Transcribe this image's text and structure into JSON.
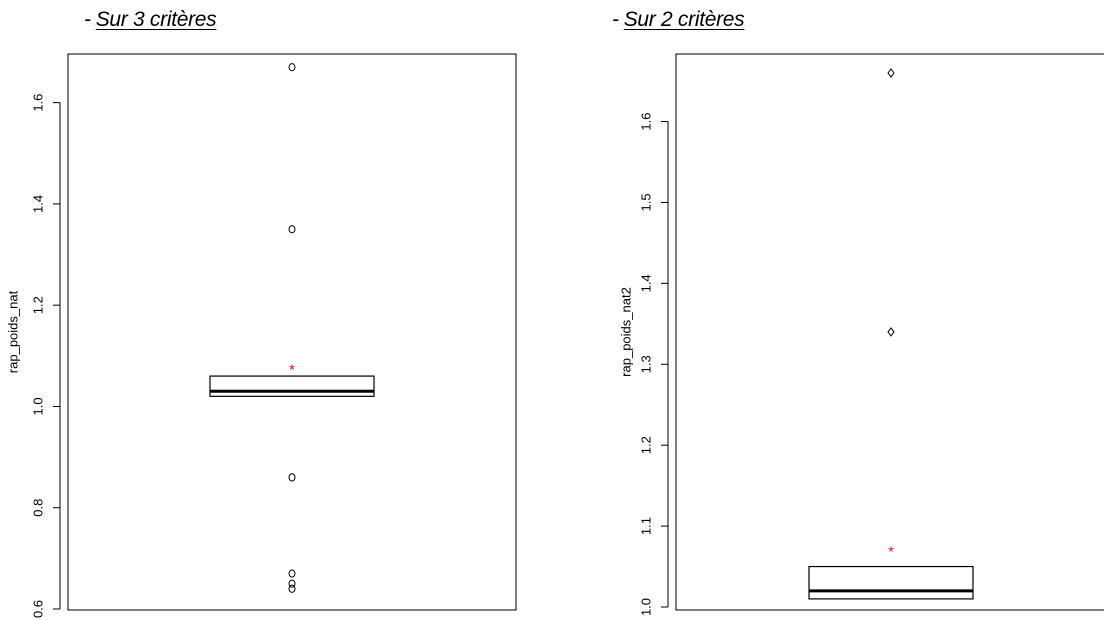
{
  "captions": [
    {
      "prefix": "-",
      "text": "Sur 3 critères"
    },
    {
      "prefix": "-",
      "text": "Sur 2 critères"
    }
  ],
  "chart_data": [
    {
      "type": "boxplot",
      "title": "",
      "xlabel": "",
      "ylabel": "rap_poids_nat",
      "ylim": [
        0.6,
        1.7
      ],
      "y_ticks": [
        0.6,
        0.8,
        1.0,
        1.2,
        1.4,
        1.6
      ],
      "tick_labels": [
        "0.6",
        "0.8",
        "1.0",
        "1.2",
        "1.4",
        "1.6"
      ],
      "box": {
        "q1": 1.02,
        "median": 1.03,
        "q3": 1.06
      },
      "mean": 1.075,
      "outliers": [
        1.67,
        1.35,
        0.86,
        0.67,
        0.65,
        0.64
      ],
      "colors": {
        "mean_marker": "#d42020",
        "box": "#000000"
      }
    },
    {
      "type": "boxplot",
      "title": "",
      "xlabel": "",
      "ylabel": "rap_poids_nat2",
      "ylim": [
        1.0,
        1.66
      ],
      "y_ticks": [
        1.0,
        1.1,
        1.2,
        1.3,
        1.4,
        1.5,
        1.6
      ],
      "tick_labels": [
        "1.0",
        "1.1",
        "1.2",
        "1.3",
        "1.4",
        "1.5",
        "1.6"
      ],
      "box": {
        "q1": 1.01,
        "median": 1.02,
        "q3": 1.05
      },
      "mean": 1.07,
      "outliers": [
        1.66,
        1.34
      ],
      "colors": {
        "mean_marker": "#d42020",
        "box": "#000000"
      }
    }
  ]
}
